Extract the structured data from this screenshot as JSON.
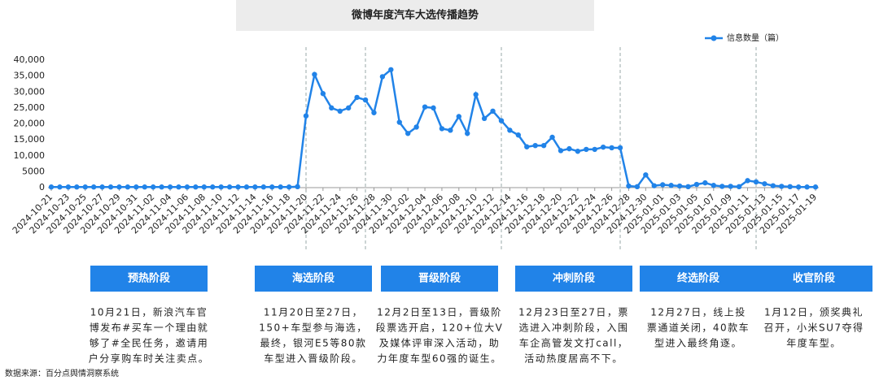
{
  "chart_data": {
    "type": "line",
    "title": "微博年度汽车大选传播趋势",
    "categories": [
      "2024-10-21",
      null,
      "2024-10-23",
      null,
      "2024-10-25",
      null,
      "2024-10-27",
      null,
      "2024-10-29",
      null,
      "2024-10-31",
      null,
      "2024-11-02",
      null,
      "2024-11-04",
      null,
      "2024-11-06",
      null,
      "2024-11-08",
      null,
      "2024-11-10",
      null,
      "2024-11-12",
      null,
      "2024-11-14",
      null,
      "2024-11-16",
      null,
      "2024-11-18",
      null,
      "2024-11-20",
      null,
      "2024-11-22",
      null,
      "2024-11-24",
      null,
      "2024-11-26",
      null,
      "2024-11-28",
      null,
      "2024-11-30",
      null,
      "2024-12-02",
      null,
      "2024-12-04",
      null,
      "2024-12-06",
      null,
      "2024-12-08",
      null,
      "2024-12-10",
      null,
      "2024-12-12",
      null,
      "2024-12-14",
      null,
      "2024-12-16",
      null,
      "2024-12-18",
      null,
      "2024-12-20",
      null,
      "2024-12-22",
      null,
      "2024-12-24",
      null,
      "2024-12-26",
      null,
      "2024-12-28",
      null,
      "2024-12-30",
      null,
      "2025-01-01",
      null,
      "2025-01-03",
      null,
      "2025-01-05",
      null,
      "2025-01-07",
      null,
      "2025-01-09",
      null,
      "2025-01-11",
      null,
      "2025-01-13",
      null,
      "2025-01-15",
      null,
      "2025-01-17",
      null,
      "2025-01-19"
    ],
    "series": [
      {
        "name": "信息数量（篇）",
        "color": "#2183e8",
        "values": [
          200,
          200,
          200,
          200,
          200,
          200,
          200,
          200,
          200,
          200,
          200,
          200,
          200,
          200,
          200,
          200,
          200,
          200,
          200,
          200,
          200,
          200,
          200,
          200,
          200,
          200,
          200,
          200,
          200,
          300,
          22500,
          35500,
          29500,
          25000,
          24000,
          25000,
          28300,
          27500,
          23500,
          34800,
          37000,
          20500,
          17000,
          19000,
          25300,
          25000,
          18500,
          18000,
          22300,
          17000,
          29200,
          21700,
          24000,
          21000,
          18000,
          16500,
          12800,
          13200,
          13200,
          15800,
          11600,
          12200,
          11400,
          12000,
          12000,
          12700,
          12500,
          12500,
          500,
          300,
          4000,
          600,
          900,
          700,
          500,
          300,
          1000,
          1500,
          700,
          400,
          400,
          300,
          2200,
          1800,
          1200,
          600,
          400,
          300,
          200,
          200,
          200
        ]
      }
    ],
    "ylim": [
      0,
      40000
    ],
    "yticks": [
      0,
      5000,
      {
        "value": 10000,
        "label": "10,000"
      },
      {
        "value": 15000,
        "label": "15,000"
      },
      {
        "value": 20000,
        "label": "20,000"
      },
      {
        "value": 25000,
        "label": "25,000"
      },
      {
        "value": 30000,
        "label": "30,000"
      },
      {
        "value": 35000,
        "label": "35,000"
      },
      {
        "value": 40000,
        "label": "40,000"
      }
    ]
  },
  "phases": [
    {
      "title": "预热阶段",
      "lines": [
        "10月21日，新浪汽车官",
        "博发布#买车一个理由就",
        "够了#全民任务，邀请用",
        "户分享购车时关注卖点。"
      ]
    },
    {
      "title": "海选阶段",
      "lines": [
        "11月20日至27日，",
        "150+车型参与海选，",
        "最终，银河E5等80款",
        "车型进入晋级阶段。"
      ]
    },
    {
      "title": "晋级阶段",
      "lines": [
        "12月2日至13日，晋级阶",
        "段票选开启，120+位大V",
        "及媒体评审深入活动，助",
        "力年度车型60强的诞生。"
      ]
    },
    {
      "title": "冲刺阶段",
      "lines": [
        "12月23日至27日，票",
        "选进入冲刺阶段，入围",
        "车企高管发文打call，",
        "活动热度居高不下。"
      ]
    },
    {
      "title": "终选阶段",
      "lines": [
        "12月27日，线上投",
        "票通道关闭，40款车",
        "型进入最终角逐。"
      ]
    },
    {
      "title": "收官阶段",
      "lines": [
        "1月12日，颁奖典礼",
        "召开，小米SU7夺得",
        "年度车型。"
      ]
    }
  ],
  "source": "数据来源：百分点舆情洞察系统"
}
